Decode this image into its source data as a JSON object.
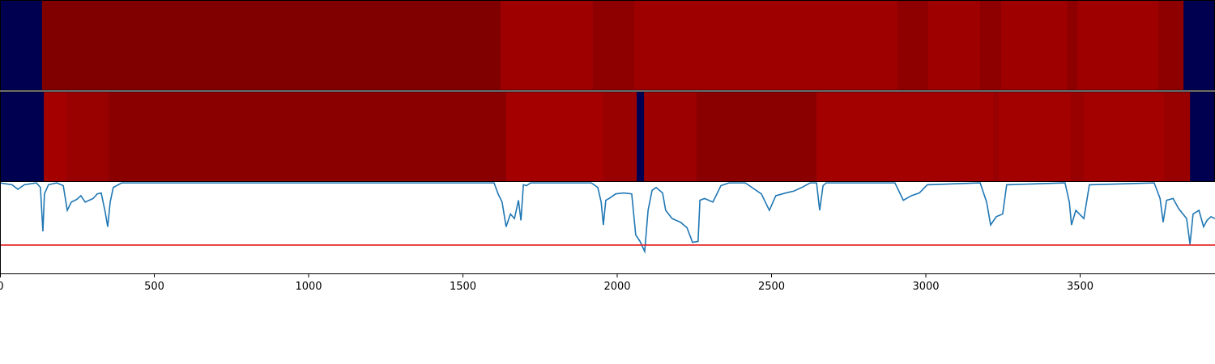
{
  "chart_data": [
    {
      "type": "heatmap",
      "x": [
        0,
        136,
        1622,
        1921,
        2055,
        2908,
        3008,
        3176,
        3244,
        3459,
        3491,
        3753,
        3835,
        3937
      ],
      "colors": [
        "#000050",
        "#800000",
        "#9e0000",
        "#8e0000",
        "#9e0000",
        "#8e0000",
        "#9e0000",
        "#8e0000",
        "#9e0000",
        "#8e0000",
        "#9e0000",
        "#8e0000",
        "#000050"
      ],
      "xlim": [
        0,
        3937
      ]
    },
    {
      "type": "heatmap",
      "x": [
        0,
        142,
        215,
        352,
        1640,
        1955,
        2063,
        2087,
        2257,
        2646,
        3218,
        3236,
        3470,
        3512,
        3772,
        3856,
        3937
      ],
      "colors": [
        "#000050",
        "#a40000",
        "#990000",
        "#8a0000",
        "#a50000",
        "#990000",
        "#000050",
        "#9c0000",
        "#8a0000",
        "#a30000",
        "#990000",
        "#a30000",
        "#990000",
        "#a30000",
        "#990000",
        "#000050"
      ],
      "xlim": [
        0,
        3937
      ]
    },
    {
      "type": "line",
      "x": [
        0,
        39,
        58,
        79,
        118,
        131,
        139,
        144,
        157,
        184,
        205,
        218,
        231,
        249,
        262,
        276,
        289,
        302,
        315,
        328,
        341,
        349,
        357,
        367,
        394,
        525,
        1601,
        1614,
        1627,
        1640,
        1654,
        1667,
        1680,
        1688,
        1696,
        1706,
        1719,
        1916,
        1937,
        1948,
        1955,
        1963,
        1974,
        1995,
        2021,
        2047,
        2060,
        2074,
        2089,
        2100,
        2113,
        2126,
        2147,
        2157,
        2178,
        2205,
        2226,
        2244,
        2262,
        2268,
        2283,
        2310,
        2336,
        2362,
        2415,
        2467,
        2493,
        2514,
        2546,
        2572,
        2598,
        2625,
        2646,
        2656,
        2667,
        2677,
        2900,
        2927,
        2953,
        2979,
        3005,
        3176,
        3197,
        3210,
        3228,
        3249,
        3262,
        3451,
        3465,
        3472,
        3486,
        3512,
        3530,
        3740,
        3759,
        3769,
        3780,
        3801,
        3819,
        3845,
        3856,
        3866,
        3885,
        3900,
        3911,
        3924,
        3937
      ],
      "series": [
        {
          "color": "#1f77b4",
          "values": [
            0.99,
            0.97,
            0.92,
            0.97,
            0.99,
            0.94,
            0.46,
            0.87,
            0.97,
            0.99,
            0.96,
            0.69,
            0.78,
            0.81,
            0.85,
            0.78,
            0.8,
            0.82,
            0.87,
            0.88,
            0.67,
            0.51,
            0.78,
            0.94,
            0.99,
            0.99,
            0.99,
            0.87,
            0.78,
            0.51,
            0.65,
            0.6,
            0.8,
            0.58,
            0.97,
            0.96,
            0.99,
            0.99,
            0.94,
            0.78,
            0.53,
            0.8,
            0.82,
            0.87,
            0.88,
            0.87,
            0.42,
            0.35,
            0.24,
            0.69,
            0.91,
            0.94,
            0.88,
            0.69,
            0.6,
            0.56,
            0.5,
            0.34,
            0.35,
            0.8,
            0.82,
            0.78,
            0.96,
            0.99,
            0.99,
            0.87,
            0.69,
            0.85,
            0.88,
            0.9,
            0.94,
            0.99,
            0.99,
            0.69,
            0.96,
            0.99,
            0.99,
            0.8,
            0.85,
            0.88,
            0.97,
            0.99,
            0.78,
            0.53,
            0.62,
            0.65,
            0.97,
            0.99,
            0.78,
            0.53,
            0.69,
            0.6,
            0.97,
            0.99,
            0.82,
            0.56,
            0.8,
            0.82,
            0.71,
            0.6,
            0.32,
            0.65,
            0.69,
            0.51,
            0.58,
            0.62,
            0.6
          ]
        }
      ],
      "hlines": [
        {
          "value": 0.31,
          "color": "#e41a1c"
        }
      ],
      "xlim": [
        0,
        3937
      ],
      "ylim": [
        0,
        1
      ],
      "xticks": [
        0,
        500,
        1000,
        1500,
        2000,
        2500,
        3000,
        3500
      ]
    }
  ]
}
